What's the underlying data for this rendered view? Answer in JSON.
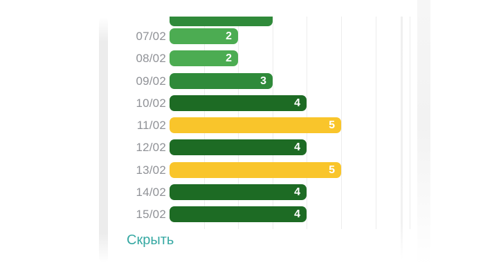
{
  "chart_data": {
    "type": "bar",
    "orientation": "horizontal",
    "title": "",
    "categories": [
      "07/02",
      "08/02",
      "09/02",
      "10/02",
      "11/02",
      "12/02",
      "13/02",
      "14/02",
      "15/02"
    ],
    "values": [
      2,
      2,
      3,
      4,
      5,
      4,
      5,
      4,
      4
    ],
    "bar_color_keys": [
      "green_light",
      "green_light",
      "green_mid",
      "green_dark",
      "yellow",
      "green_dark",
      "yellow",
      "green_dark",
      "green_dark"
    ],
    "partial_top_bar": {
      "value": 3,
      "color_key": "green_mid",
      "clipped": true
    },
    "value_labels_shown": true,
    "xlim": [
      0,
      7.5
    ],
    "gridline_values": [
      1,
      2,
      3,
      4,
      5,
      6,
      7
    ],
    "grid": true,
    "legend": false
  },
  "hide_link": {
    "label": "Скрыть"
  },
  "colors": {
    "green_light": "#4CAC52",
    "green_mid": "#2F8A3A",
    "green_dark": "#1D6B24",
    "yellow": "#F9C52B",
    "date_label": "#8F9196",
    "value_label": "#FFFFFF",
    "hide_link": "#35A8A2",
    "gridline": "#ECECEC",
    "background": "#FFFFFF",
    "edge_band": "#ECECEC"
  }
}
